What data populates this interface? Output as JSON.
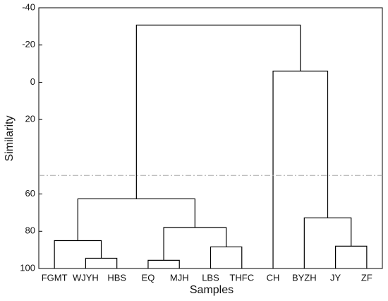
{
  "chart_data": {
    "type": "dendrogram",
    "xlabel": "Samples",
    "ylabel": "Similarity",
    "ylim": [
      -40,
      100
    ],
    "yticks": [
      -40,
      -20,
      0,
      20,
      60,
      80,
      100
    ],
    "y_inverted": true,
    "color": "#000000",
    "threshold": 50,
    "threshold_color": "#aaaaaa",
    "leaves": [
      "FGMT",
      "WJYH",
      "HBS",
      "EQ",
      "MJH",
      "LBS",
      "THFC",
      "CH",
      "BYZH",
      "JY",
      "ZF"
    ],
    "merges": [
      {
        "children": [
          1,
          2
        ],
        "height": 94.5
      },
      {
        "children": [
          0,
          11
        ],
        "height": 85
      },
      {
        "children": [
          3,
          4
        ],
        "height": 95.6
      },
      {
        "children": [
          5,
          6
        ],
        "height": 88.4
      },
      {
        "children": [
          13,
          14
        ],
        "height": 78
      },
      {
        "children": [
          12,
          15
        ],
        "height": 62.6
      },
      {
        "children": [
          9,
          10
        ],
        "height": 88
      },
      {
        "children": [
          8,
          17
        ],
        "height": 72.8
      },
      {
        "children": [
          7,
          18
        ],
        "height": -6
      },
      {
        "children": [
          16,
          19
        ],
        "height": -30.7
      }
    ]
  }
}
